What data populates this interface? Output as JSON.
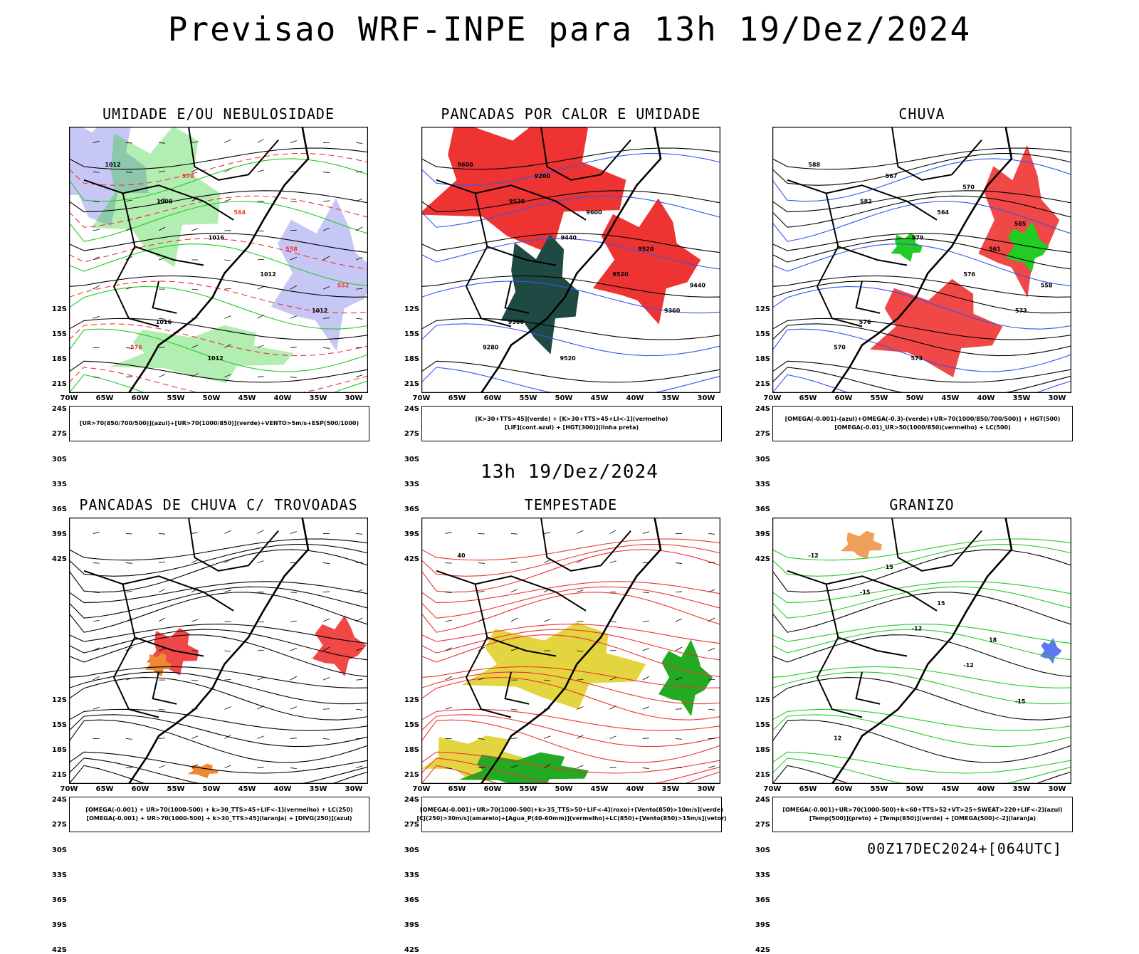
{
  "title": "Previsao WRF-INPE  para 13h 19/Dez/2024",
  "subtitle": "13h 19/Dez/2024",
  "footer": "00Z17DEC2024+[064UTC]",
  "lat_labels": [
    "12S",
    "15S",
    "18S",
    "21S",
    "24S",
    "27S",
    "30S",
    "33S",
    "36S",
    "39S",
    "42S"
  ],
  "lon_labels": [
    "70W",
    "65W",
    "60W",
    "55W",
    "50W",
    "45W",
    "40W",
    "35W",
    "30W"
  ],
  "panels": [
    {
      "title": "UMIDADE E/OU NEBULOSIDADE",
      "legend": [
        "[UR>70(850/700/500)](azul)+[UR>70(1000/850)](verde)+VENTO>5m/s+ESP(500/1000)"
      ],
      "labels": [
        "1012",
        "1008",
        "1016",
        "1012",
        "1012",
        "576",
        "570",
        "564",
        "558",
        "552",
        "1016",
        "1012"
      ]
    },
    {
      "title": "PANCADAS POR CALOR E UMIDADE",
      "legend": [
        "[K>30+TTS>45](verde) + [K>30+TTS>45+LI<-1](vermelho)",
        "[LIF](cont.azul) + [HGT(300)](linha preta)"
      ],
      "labels": [
        "9600",
        "9520",
        "9440",
        "9520",
        "9360",
        "9280",
        "9200",
        "9600",
        "9520",
        "9440",
        "9360",
        "9520"
      ]
    },
    {
      "title": "CHUVA",
      "legend": [
        "[OMEGA(-0.001)-(azul)+OMEGA(-0.3)-(verde)+UR>70(1000/850/700/500)] + HGT(500)",
        "[OMEGA(-0.01)_UR>50(1000/850)(vermelho) + LC(500)"
      ],
      "labels": [
        "588",
        "582",
        "579",
        "576",
        "573",
        "570",
        "567",
        "564",
        "561",
        "558",
        "576",
        "573",
        "570",
        "585"
      ]
    },
    {
      "title": "PANCADAS DE CHUVA C/ TROVOADAS",
      "legend": [
        "[OMEGA(-0.001) + UR>70(1000-500) + k>30_TTS>45+LIF<-1](vermelho) + LC(250)",
        "[OMEGA(-0.001) + UR>70(1000-500) + k>30_TTS>45](laranja) + [DIVG(250)](azul)"
      ],
      "labels": []
    },
    {
      "title": "TEMPESTADE",
      "legend": [
        "[OMEGA(-0.001)+UR>70(1000-500)+k>35_TTS>50+LIF<-4](roxo)+[Vento(850)>10m/s](verde)",
        "[CJ(250)>30m/s](amarelo)+[Agua_P(40-60mm)](vermelho)+LC(850)+[Vento(850)>15m/s](vetor)"
      ],
      "labels": [
        "40"
      ]
    },
    {
      "title": "GRANIZO",
      "legend": [
        "[OMEGA(-0.001)+UR>70(1000-500)+k<60+TTS>52+VT>25+SWEAT>220+LIF<-2](azul)",
        "[Temp(500)](preto) + [Temp(850)](verde) + [OMEGA(500)<-2](laranja)"
      ],
      "labels": [
        "-12",
        "-15",
        "-12",
        "-12",
        "-15",
        "12",
        "15",
        "15",
        "18"
      ]
    }
  ]
}
